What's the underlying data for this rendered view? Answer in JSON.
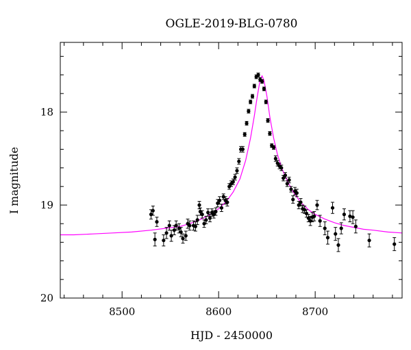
{
  "chart_data": {
    "type": "scatter",
    "title": "OGLE-2019-BLG-0780",
    "xlabel": "HJD - 2450000",
    "ylabel": "I magnitude",
    "xlim": [
      8436,
      8790
    ],
    "ylim": [
      20.0,
      17.25
    ],
    "y_inverted": true,
    "x_ticks": [
      8500,
      8600,
      8700
    ],
    "y_ticks": [
      18,
      19,
      20
    ],
    "grid": false,
    "colors": {
      "points": "#000000",
      "model": "#ff00ff",
      "axes": "#000000"
    },
    "series": [
      {
        "kind": "points_with_errorbars",
        "x": [
          8530,
          8532,
          8534,
          8536,
          8543,
          8546,
          8549,
          8551,
          8554,
          8556,
          8559,
          8561,
          8563,
          8566,
          8568,
          8570,
          8574,
          8576,
          8578,
          8580,
          8581,
          8583,
          8585,
          8587,
          8589,
          8591,
          8593,
          8595,
          8597,
          8599,
          8601,
          8603,
          8605,
          8607,
          8609,
          8611,
          8613,
          8615,
          8617,
          8619,
          8621,
          8623,
          8625,
          8627,
          8629,
          8631,
          8633,
          8635,
          8637,
          8639,
          8641,
          8643,
          8645,
          8647,
          8649,
          8651,
          8653,
          8655,
          8657,
          8659,
          8661,
          8663,
          8665,
          8667,
          8669,
          8671,
          8673,
          8675,
          8677,
          8679,
          8681,
          8683,
          8685,
          8687,
          8689,
          8691,
          8693,
          8695,
          8697,
          8699,
          8702,
          8705,
          8710,
          8713,
          8718,
          8721,
          8724,
          8727,
          8730,
          8736,
          8739,
          8742,
          8756,
          8782
        ],
        "y": [
          19.1,
          19.06,
          19.37,
          19.18,
          19.38,
          19.3,
          19.22,
          19.33,
          19.27,
          19.22,
          19.25,
          19.29,
          19.36,
          19.33,
          19.2,
          19.22,
          19.22,
          19.23,
          19.16,
          19.0,
          19.07,
          19.1,
          19.2,
          19.16,
          19.08,
          19.14,
          19.08,
          19.1,
          19.07,
          18.98,
          18.95,
          19.03,
          18.91,
          18.95,
          18.97,
          18.8,
          18.77,
          18.75,
          18.7,
          18.63,
          18.53,
          18.4,
          18.4,
          18.24,
          18.12,
          17.99,
          17.89,
          17.83,
          17.72,
          17.62,
          17.6,
          17.65,
          17.67,
          17.75,
          17.89,
          18.09,
          18.23,
          18.36,
          18.38,
          18.5,
          18.55,
          18.58,
          18.6,
          18.71,
          18.68,
          18.77,
          18.73,
          18.83,
          18.94,
          18.85,
          18.87,
          19.0,
          18.97,
          19.04,
          19.05,
          19.09,
          19.14,
          19.17,
          19.13,
          19.12,
          19.0,
          19.17,
          19.25,
          19.35,
          19.03,
          19.31,
          19.43,
          19.25,
          19.1,
          19.12,
          19.13,
          19.23,
          19.38,
          19.42
        ],
        "yerr": [
          0.05,
          0.05,
          0.07,
          0.05,
          0.06,
          0.06,
          0.05,
          0.06,
          0.05,
          0.05,
          0.05,
          0.05,
          0.05,
          0.05,
          0.05,
          0.05,
          0.05,
          0.05,
          0.05,
          0.04,
          0.04,
          0.04,
          0.04,
          0.04,
          0.04,
          0.04,
          0.04,
          0.04,
          0.04,
          0.04,
          0.04,
          0.04,
          0.03,
          0.04,
          0.04,
          0.03,
          0.03,
          0.03,
          0.03,
          0.03,
          0.03,
          0.03,
          0.03,
          0.02,
          0.02,
          0.02,
          0.02,
          0.02,
          0.02,
          0.02,
          0.02,
          0.02,
          0.02,
          0.02,
          0.02,
          0.02,
          0.02,
          0.02,
          0.02,
          0.03,
          0.03,
          0.03,
          0.03,
          0.03,
          0.03,
          0.03,
          0.03,
          0.03,
          0.04,
          0.04,
          0.04,
          0.04,
          0.04,
          0.04,
          0.04,
          0.04,
          0.04,
          0.05,
          0.05,
          0.05,
          0.05,
          0.06,
          0.07,
          0.07,
          0.06,
          0.07,
          0.07,
          0.06,
          0.06,
          0.06,
          0.07,
          0.07,
          0.07,
          0.07
        ]
      },
      {
        "kind": "model_curve",
        "x": [
          8436,
          8450,
          8470,
          8490,
          8510,
          8530,
          8545,
          8560,
          8570,
          8580,
          8590,
          8600,
          8608,
          8615,
          8622,
          8628,
          8633,
          8637,
          8640,
          8643,
          8645,
          8647,
          8650,
          8653,
          8657,
          8661,
          8666,
          8672,
          8678,
          8685,
          8693,
          8700,
          8710,
          8720,
          8730,
          8740,
          8750,
          8760,
          8775,
          8790
        ],
        "y": [
          19.32,
          19.32,
          19.31,
          19.3,
          19.29,
          19.27,
          19.25,
          19.23,
          19.2,
          19.16,
          19.11,
          19.04,
          18.96,
          18.86,
          18.72,
          18.52,
          18.28,
          18.04,
          17.83,
          17.65,
          17.61,
          17.66,
          17.83,
          18.05,
          18.28,
          18.46,
          18.62,
          18.76,
          18.87,
          18.97,
          19.05,
          19.1,
          19.15,
          19.19,
          19.22,
          19.24,
          19.26,
          19.27,
          19.29,
          19.3
        ]
      }
    ]
  }
}
